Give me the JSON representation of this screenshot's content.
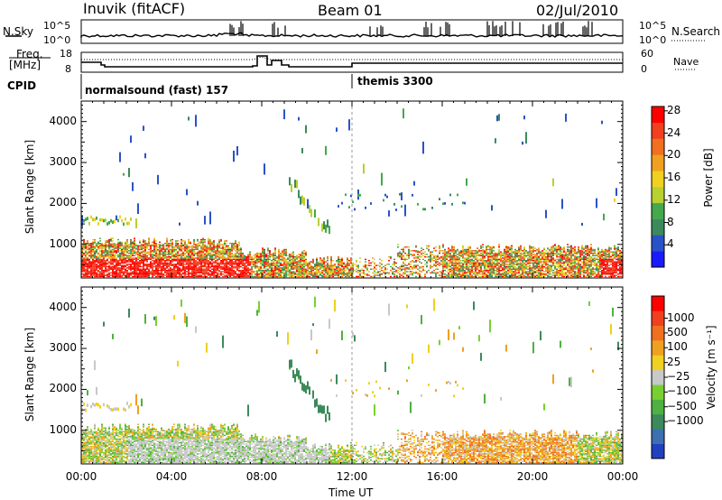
{
  "header": {
    "station": "Inuvik (fitACF)",
    "beam": "Beam 01",
    "date": "02/Jul/2010"
  },
  "top_panels": {
    "nsky_label": "N.Sky",
    "nsky_ticks": [
      "10^5",
      "10^0"
    ],
    "nsearch_label": "N.Search",
    "nsearch_ticks": [
      "10^5",
      "10^0"
    ],
    "freq_label": "Freq.",
    "freq_unit": "[MHz]",
    "freq_ticks": [
      "18",
      "8"
    ],
    "nave_label": "Nave",
    "nave_ticks": [
      "60",
      "0"
    ],
    "cpid_label": "CPID",
    "cpid_segments": [
      {
        "label": "normalsound (fast) 157",
        "start_hour": 0
      },
      {
        "label": "themis 3300",
        "start_hour": 12
      }
    ]
  },
  "chart_data": [
    {
      "type": "heatmap",
      "name": "power-panel",
      "ylabel": "Slant Range [km]",
      "ylim": [
        180,
        4500
      ],
      "yticks": [
        1000,
        2000,
        3000,
        4000
      ],
      "xlim": [
        0,
        24
      ],
      "colorbar": {
        "label": "Power [dB]",
        "ticks": [
          "4",
          "8",
          "12",
          "16",
          "20",
          "24",
          "28"
        ],
        "colors": [
          "#1a1aff",
          "#2a52c8",
          "#3c8a5c",
          "#44a84c",
          "#b8d030",
          "#f0d020",
          "#f0a020",
          "#f07020",
          "#f04020",
          "#ff0000"
        ]
      }
    },
    {
      "type": "heatmap",
      "name": "velocity-panel",
      "ylabel": "Slant Range [km]",
      "ylim": [
        180,
        4500
      ],
      "yticks": [
        1000,
        2000,
        3000,
        4000
      ],
      "xlim": [
        0,
        24
      ],
      "xticks": [
        "00:00",
        "04:00",
        "08:00",
        "12:00",
        "16:00",
        "20:00",
        "00:00"
      ],
      "xlabel": "Time UT",
      "colorbar": {
        "label": "Velocity [m s⁻¹]",
        "ticks": [
          "1000",
          "500",
          "100",
          "25",
          "−25",
          "−100",
          "−500",
          "−1000"
        ],
        "colors": [
          "#2040c0",
          "#3c70b0",
          "#3c8a5c",
          "#50b040",
          "#78d030",
          "#c8c8c8",
          "#f0d020",
          "#f0a020",
          "#f07020",
          "#f04020",
          "#ff0000"
        ]
      }
    }
  ]
}
